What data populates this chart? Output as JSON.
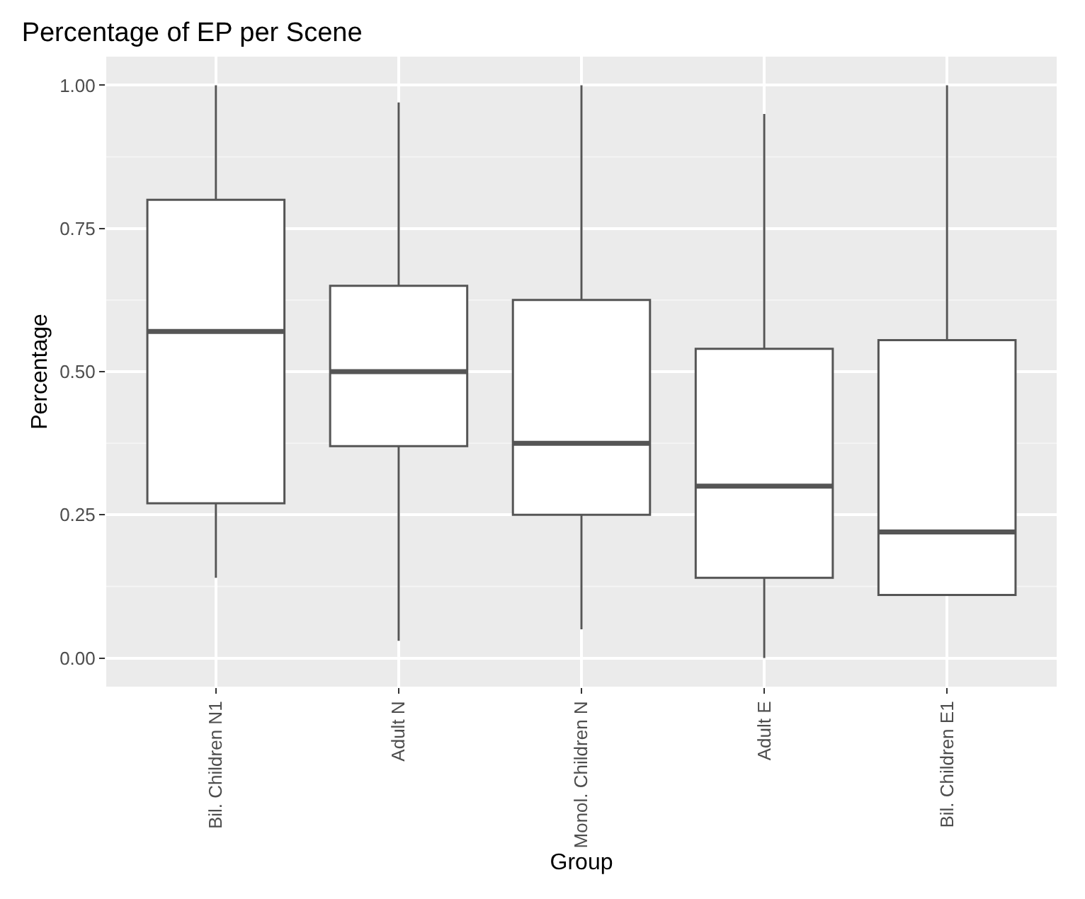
{
  "chart_data": {
    "type": "box",
    "title": "Percentage of EP per Scene",
    "xlabel": "Group",
    "ylabel": "Percentage",
    "categories": [
      "Bil. Children N1",
      "Adult N",
      "Monol. Children N",
      "Adult E",
      "Bil. Children E1"
    ],
    "boxes": [
      {
        "low": 0.14,
        "q1": 0.27,
        "median": 0.57,
        "q3": 0.8,
        "high": 1.0
      },
      {
        "low": 0.03,
        "q1": 0.37,
        "median": 0.5,
        "q3": 0.65,
        "high": 0.97
      },
      {
        "low": 0.05,
        "q1": 0.25,
        "median": 0.375,
        "q3": 0.625,
        "high": 1.0
      },
      {
        "low": 0.0,
        "q1": 0.14,
        "median": 0.3,
        "q3": 0.54,
        "high": 0.95
      },
      {
        "low": 0.11,
        "q1": 0.11,
        "median": 0.22,
        "q3": 0.555,
        "high": 1.0
      }
    ],
    "color": "#555555",
    "ylim": [
      -0.05,
      1.05
    ],
    "yticks": [
      {
        "value": 0,
        "label": "0.00"
      },
      {
        "value": 0.25,
        "label": "0.25"
      },
      {
        "value": 0.5,
        "label": "0.50"
      },
      {
        "value": 0.75,
        "label": "0.75"
      },
      {
        "value": 1,
        "label": "1.00"
      }
    ],
    "grid": true
  }
}
